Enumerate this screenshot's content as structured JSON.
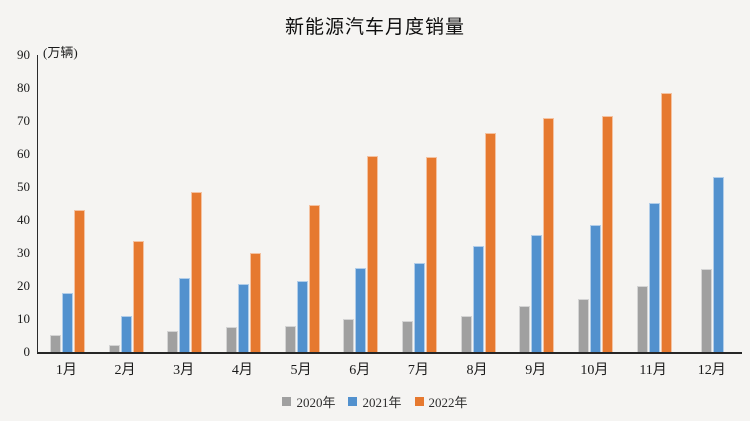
{
  "chart_data": {
    "type": "bar",
    "title": "新能源汽车月度销量",
    "ylabel": "(万辆)",
    "xlabel": "",
    "categories": [
      "1月",
      "2月",
      "3月",
      "4月",
      "5月",
      "6月",
      "7月",
      "8月",
      "9月",
      "10月",
      "11月",
      "12月"
    ],
    "series": [
      {
        "name": "2020年",
        "color": "#a0a0a0",
        "values": [
          5,
          2,
          6.5,
          7.5,
          8,
          10,
          9.5,
          11,
          14,
          16,
          20,
          25
        ]
      },
      {
        "name": "2021年",
        "color": "#5291ce",
        "values": [
          18,
          11,
          22.5,
          20.5,
          21.5,
          25.5,
          27,
          32,
          35.5,
          38.5,
          45,
          53
        ]
      },
      {
        "name": "2022年",
        "color": "#e6792f",
        "values": [
          43,
          33.5,
          48.5,
          30,
          44.5,
          59.5,
          59,
          66.5,
          71,
          71.5,
          78.5,
          null
        ]
      }
    ],
    "ylim": [
      0,
      90
    ],
    "yticks": [
      0,
      10,
      20,
      30,
      40,
      50,
      60,
      70,
      80,
      90
    ],
    "grid": false,
    "legend_position": "bottom",
    "axis_color": "#262626",
    "background_color": "#f5f4f2"
  }
}
